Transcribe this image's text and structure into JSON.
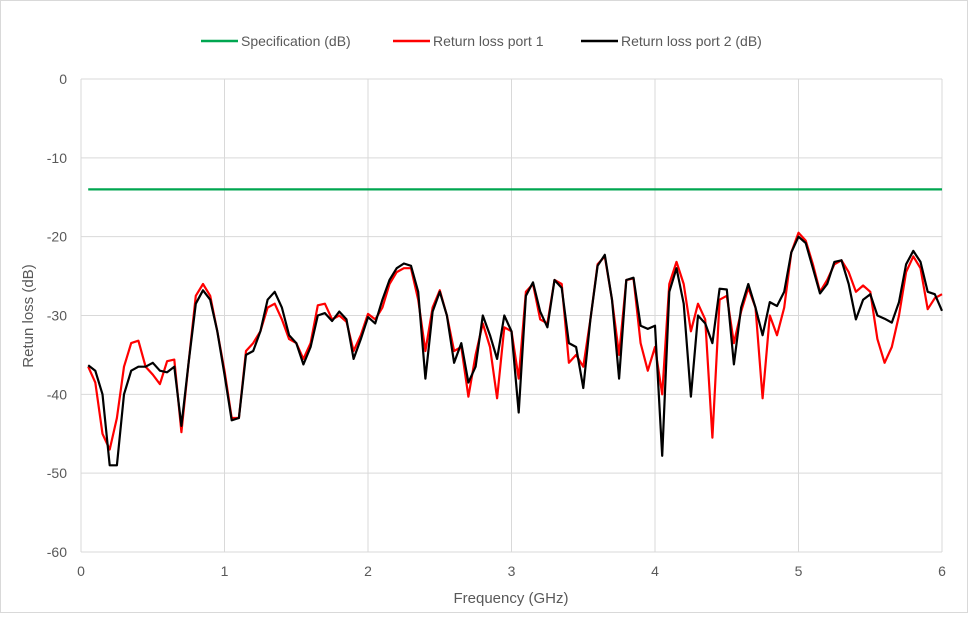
{
  "chart_data": {
    "type": "line",
    "title": "",
    "xlabel": "Frequency (GHz)",
    "ylabel": "Retun loss (dB)",
    "xlim": [
      0,
      6
    ],
    "ylim": [
      -60,
      0
    ],
    "x_ticks": [
      "0",
      "1",
      "2",
      "3",
      "4",
      "5",
      "6"
    ],
    "y_ticks": [
      "0",
      "-10",
      "-20",
      "-30",
      "-40",
      "-50",
      "-60"
    ],
    "grid": true,
    "legend_position": "top",
    "colors": {
      "spec": "#00a650",
      "port1": "#ff0000",
      "port2": "#000000",
      "grid": "#d9d9d9"
    },
    "series": [
      {
        "name": "Specification (dB)",
        "x": [
          0.05,
          6.0
        ],
        "y": [
          -14,
          -14
        ]
      },
      {
        "name": "Return loss port 1",
        "x": [
          0.05,
          0.1,
          0.15,
          0.2,
          0.25,
          0.3,
          0.35,
          0.4,
          0.45,
          0.5,
          0.55,
          0.6,
          0.65,
          0.7,
          0.75,
          0.8,
          0.85,
          0.9,
          0.95,
          1.0,
          1.05,
          1.1,
          1.15,
          1.2,
          1.25,
          1.3,
          1.35,
          1.4,
          1.45,
          1.5,
          1.55,
          1.6,
          1.65,
          1.7,
          1.75,
          1.8,
          1.85,
          1.9,
          1.95,
          2.0,
          2.05,
          2.1,
          2.15,
          2.2,
          2.25,
          2.3,
          2.35,
          2.4,
          2.45,
          2.5,
          2.55,
          2.6,
          2.65,
          2.7,
          2.75,
          2.8,
          2.85,
          2.9,
          2.95,
          3.0,
          3.05,
          3.1,
          3.15,
          3.2,
          3.25,
          3.3,
          3.35,
          3.4,
          3.45,
          3.5,
          3.55,
          3.6,
          3.65,
          3.7,
          3.75,
          3.8,
          3.85,
          3.9,
          3.95,
          4.0,
          4.05,
          4.1,
          4.15,
          4.2,
          4.25,
          4.3,
          4.35,
          4.4,
          4.45,
          4.5,
          4.55,
          4.6,
          4.65,
          4.7,
          4.75,
          4.8,
          4.85,
          4.9,
          4.95,
          5.0,
          5.05,
          5.1,
          5.15,
          5.2,
          5.25,
          5.3,
          5.35,
          5.4,
          5.45,
          5.5,
          5.55,
          5.6,
          5.65,
          5.7,
          5.75,
          5.8,
          5.85,
          5.9,
          5.95,
          6.0
        ],
        "y": [
          -36.5,
          -38.5,
          -45,
          -47,
          -43,
          -36.5,
          -33.5,
          -33.2,
          -36.5,
          -37.5,
          -38.7,
          -35.8,
          -35.6,
          -44.8,
          -36,
          -27.5,
          -26,
          -27.5,
          -32,
          -37,
          -43,
          -43,
          -34.5,
          -33.5,
          -32,
          -29,
          -28.5,
          -30.5,
          -33,
          -33.5,
          -35.5,
          -33.5,
          -28.7,
          -28.5,
          -30.5,
          -30,
          -30.8,
          -34.5,
          -32.5,
          -29.8,
          -30.5,
          -29,
          -26,
          -24.5,
          -24,
          -24,
          -28,
          -34.5,
          -29,
          -26.8,
          -30,
          -34.5,
          -34,
          -40.3,
          -35,
          -31,
          -34,
          -40.5,
          -31.5,
          -32,
          -38,
          -27,
          -26,
          -30.5,
          -31,
          -25.5,
          -26,
          -36,
          -35,
          -36.5,
          -30.5,
          -23.5,
          -22.5,
          -28,
          -35,
          -25.5,
          -25.3,
          -33.5,
          -37,
          -34,
          -40,
          -26,
          -23.2,
          -26,
          -32,
          -28.5,
          -30.5,
          -45.5,
          -28,
          -27.5,
          -33.5,
          -29.5,
          -26.5,
          -29,
          -40.5,
          -30,
          -32.5,
          -29,
          -22,
          -19.5,
          -20.5,
          -23.5,
          -27,
          -25.5,
          -23.5,
          -23,
          -24.5,
          -27,
          -26.2,
          -27,
          -33,
          -36,
          -34,
          -30,
          -24.5,
          -22.5,
          -24,
          -29.2,
          -27.8,
          -27.3
        ]
      },
      {
        "name": "Return loss port 2 (dB)",
        "x": [
          0.05,
          0.1,
          0.15,
          0.2,
          0.25,
          0.3,
          0.35,
          0.4,
          0.45,
          0.5,
          0.55,
          0.6,
          0.65,
          0.7,
          0.75,
          0.8,
          0.85,
          0.9,
          0.95,
          1.0,
          1.05,
          1.1,
          1.15,
          1.2,
          1.25,
          1.3,
          1.35,
          1.4,
          1.45,
          1.5,
          1.55,
          1.6,
          1.65,
          1.7,
          1.75,
          1.8,
          1.85,
          1.9,
          1.95,
          2.0,
          2.05,
          2.1,
          2.15,
          2.2,
          2.25,
          2.3,
          2.35,
          2.4,
          2.45,
          2.5,
          2.55,
          2.6,
          2.65,
          2.7,
          2.75,
          2.8,
          2.85,
          2.9,
          2.95,
          3.0,
          3.05,
          3.1,
          3.15,
          3.2,
          3.25,
          3.3,
          3.35,
          3.4,
          3.45,
          3.5,
          3.55,
          3.6,
          3.65,
          3.7,
          3.75,
          3.8,
          3.85,
          3.9,
          3.95,
          4.0,
          4.05,
          4.1,
          4.15,
          4.2,
          4.25,
          4.3,
          4.35,
          4.4,
          4.45,
          4.5,
          4.55,
          4.6,
          4.65,
          4.7,
          4.75,
          4.8,
          4.85,
          4.9,
          4.95,
          5.0,
          5.05,
          5.1,
          5.15,
          5.2,
          5.25,
          5.3,
          5.35,
          5.4,
          5.45,
          5.5,
          5.55,
          5.6,
          5.65,
          5.7,
          5.75,
          5.8,
          5.85,
          5.9,
          5.95,
          6.0
        ],
        "y": [
          -36.3,
          -37,
          -40,
          -49,
          -49,
          -40,
          -37,
          -36.5,
          -36.5,
          -36,
          -37,
          -37.2,
          -36.5,
          -44,
          -36,
          -28.5,
          -26.8,
          -28,
          -32,
          -37.5,
          -43.3,
          -43,
          -35,
          -34.5,
          -32,
          -28,
          -27,
          -29,
          -32.5,
          -33.5,
          -36.2,
          -34,
          -30,
          -29.7,
          -30.7,
          -29.5,
          -30.5,
          -35.5,
          -33,
          -30.2,
          -31,
          -28,
          -25.5,
          -24,
          -23.4,
          -23.7,
          -27,
          -38,
          -29.5,
          -27,
          -30,
          -36,
          -33.5,
          -38.5,
          -36.5,
          -30,
          -32.5,
          -35.5,
          -30,
          -32,
          -42.3,
          -27.5,
          -25.8,
          -29.5,
          -31.5,
          -25.5,
          -26.5,
          -33.5,
          -34,
          -39.2,
          -30.5,
          -23.7,
          -22.3,
          -28,
          -38,
          -25.5,
          -25.2,
          -31.3,
          -31.7,
          -31.3,
          -47.8,
          -27,
          -24,
          -28.5,
          -40.3,
          -30,
          -31,
          -33.5,
          -26.6,
          -26.7,
          -36.2,
          -29,
          -26,
          -29,
          -32.5,
          -28.3,
          -28.8,
          -27,
          -22,
          -20,
          -20.8,
          -24,
          -27.2,
          -26,
          -23.2,
          -23,
          -26,
          -30.5,
          -28,
          -27.3,
          -30,
          -30.4,
          -30.9,
          -28.3,
          -23.5,
          -21.8,
          -23.2,
          -27,
          -27.3,
          -29.4
        ]
      }
    ]
  }
}
